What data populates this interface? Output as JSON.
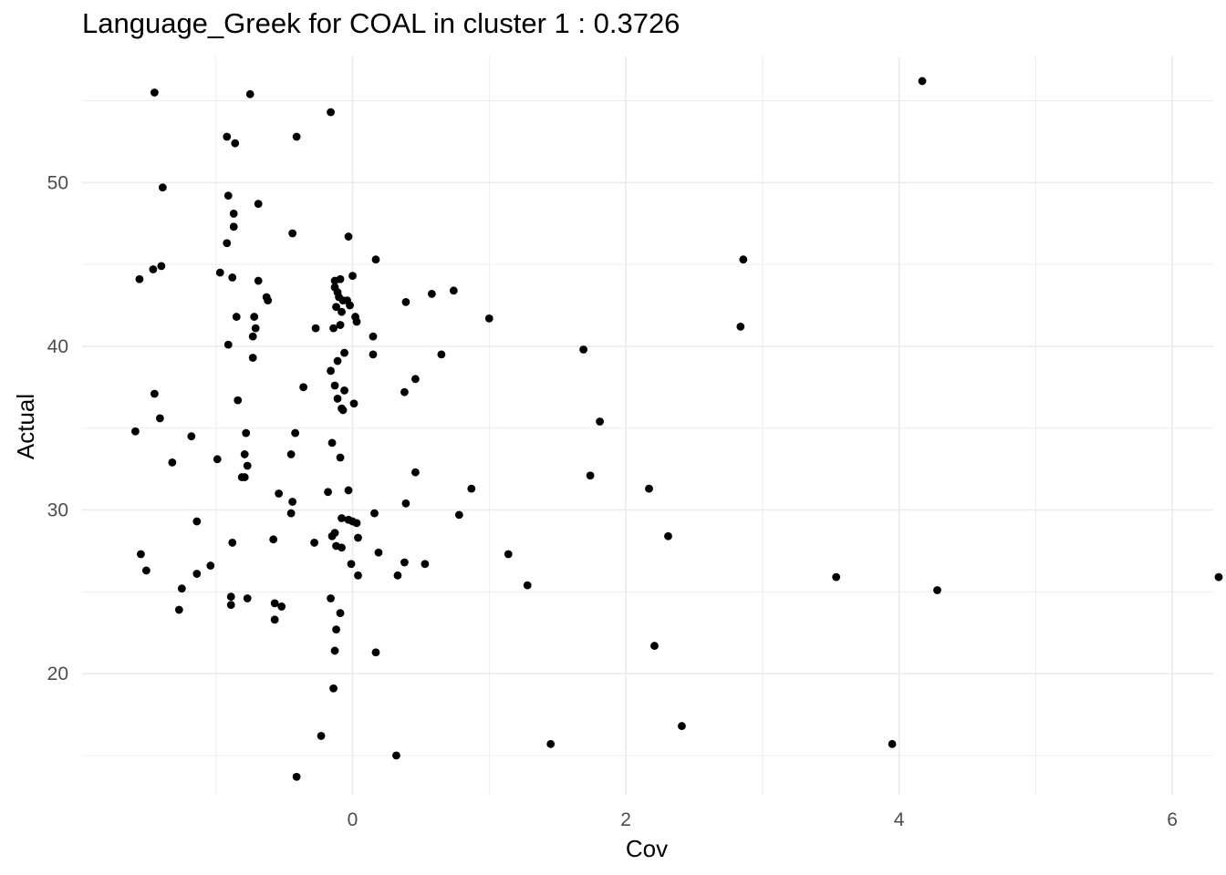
{
  "chart_data": {
    "type": "scatter",
    "title": "Language_Greek for COAL in cluster 1 : 0.3726",
    "xlabel": "Cov",
    "ylabel": "Actual",
    "xlim": [
      -1.98,
      6.3
    ],
    "ylim": [
      12.6,
      57.7
    ],
    "x_ticks": [
      0,
      2,
      4,
      6
    ],
    "x_tick_labels": [
      "0",
      "2",
      "4",
      "6"
    ],
    "y_ticks": [
      20,
      30,
      40,
      50
    ],
    "y_tick_labels": [
      "20",
      "30",
      "40",
      "50"
    ],
    "grid": true,
    "legend": "none",
    "point_color": "#000000",
    "points": [
      [
        -1.45,
        55.5
      ],
      [
        -0.75,
        55.4
      ],
      [
        4.17,
        56.2
      ],
      [
        -0.16,
        54.3
      ],
      [
        -0.92,
        52.8
      ],
      [
        -0.86,
        52.4
      ],
      [
        -0.41,
        52.8
      ],
      [
        -1.39,
        49.7
      ],
      [
        -0.91,
        49.2
      ],
      [
        -0.69,
        48.7
      ],
      [
        -0.87,
        48.1
      ],
      [
        -0.87,
        47.3
      ],
      [
        -0.44,
        46.9
      ],
      [
        -0.03,
        46.7
      ],
      [
        -0.92,
        46.3
      ],
      [
        0.17,
        45.3
      ],
      [
        2.86,
        45.3
      ],
      [
        -1.4,
        44.9
      ],
      [
        -1.46,
        44.7
      ],
      [
        -0.97,
        44.5
      ],
      [
        -1.56,
        44.1
      ],
      [
        -0.88,
        44.2
      ],
      [
        -0.69,
        44.0
      ],
      [
        0.0,
        44.3
      ],
      [
        -0.13,
        44.0
      ],
      [
        -0.09,
        44.1
      ],
      [
        -0.13,
        43.6
      ],
      [
        0.74,
        43.4
      ],
      [
        0.58,
        43.2
      ],
      [
        -0.11,
        43.3
      ],
      [
        -0.63,
        43.0
      ],
      [
        -0.62,
        42.8
      ],
      [
        -0.1,
        43.0
      ],
      [
        -0.07,
        42.8
      ],
      [
        -0.04,
        42.8
      ],
      [
        0.39,
        42.7
      ],
      [
        -0.12,
        42.4
      ],
      [
        -0.02,
        42.5
      ],
      [
        -0.08,
        42.1
      ],
      [
        -0.85,
        41.8
      ],
      [
        -0.72,
        41.8
      ],
      [
        0.02,
        41.8
      ],
      [
        1.0,
        41.7
      ],
      [
        0.03,
        41.5
      ],
      [
        2.84,
        41.2
      ],
      [
        -0.09,
        41.3
      ],
      [
        -0.27,
        41.1
      ],
      [
        -0.14,
        41.1
      ],
      [
        -0.71,
        41.1
      ],
      [
        -0.73,
        40.6
      ],
      [
        0.15,
        40.6
      ],
      [
        -0.91,
        40.1
      ],
      [
        1.69,
        39.8
      ],
      [
        -0.06,
        39.6
      ],
      [
        0.15,
        39.5
      ],
      [
        0.65,
        39.5
      ],
      [
        -0.73,
        39.3
      ],
      [
        -0.11,
        39.1
      ],
      [
        -0.16,
        38.5
      ],
      [
        0.46,
        38.0
      ],
      [
        -0.13,
        37.6
      ],
      [
        -0.36,
        37.5
      ],
      [
        -0.06,
        37.3
      ],
      [
        0.38,
        37.2
      ],
      [
        -1.45,
        37.1
      ],
      [
        -0.11,
        36.8
      ],
      [
        -0.84,
        36.7
      ],
      [
        0.01,
        36.5
      ],
      [
        -0.08,
        36.2
      ],
      [
        -0.07,
        36.1
      ],
      [
        -1.41,
        35.6
      ],
      [
        1.81,
        35.4
      ],
      [
        -1.59,
        34.8
      ],
      [
        -0.42,
        34.7
      ],
      [
        -0.78,
        34.7
      ],
      [
        -1.18,
        34.5
      ],
      [
        -0.15,
        34.1
      ],
      [
        -0.79,
        33.4
      ],
      [
        -0.45,
        33.4
      ],
      [
        -0.09,
        33.2
      ],
      [
        -0.99,
        33.1
      ],
      [
        -1.32,
        32.9
      ],
      [
        -0.77,
        32.7
      ],
      [
        0.46,
        32.3
      ],
      [
        1.74,
        32.1
      ],
      [
        -0.81,
        32.0
      ],
      [
        -0.79,
        32.0
      ],
      [
        2.17,
        31.3
      ],
      [
        0.87,
        31.3
      ],
      [
        -0.03,
        31.2
      ],
      [
        -0.18,
        31.1
      ],
      [
        -0.54,
        31.0
      ],
      [
        -0.44,
        30.5
      ],
      [
        0.39,
        30.4
      ],
      [
        0.16,
        29.8
      ],
      [
        -0.45,
        29.8
      ],
      [
        0.78,
        29.7
      ],
      [
        -0.08,
        29.5
      ],
      [
        -0.03,
        29.4
      ],
      [
        0.0,
        29.3
      ],
      [
        0.03,
        29.2
      ],
      [
        -1.14,
        29.3
      ],
      [
        2.31,
        28.4
      ],
      [
        -0.13,
        28.6
      ],
      [
        -0.15,
        28.4
      ],
      [
        0.04,
        28.3
      ],
      [
        -0.58,
        28.2
      ],
      [
        -0.88,
        28.0
      ],
      [
        -0.28,
        28.0
      ],
      [
        -0.12,
        27.8
      ],
      [
        -0.08,
        27.7
      ],
      [
        -1.55,
        27.3
      ],
      [
        0.19,
        27.4
      ],
      [
        1.14,
        27.3
      ],
      [
        -0.01,
        26.7
      ],
      [
        0.38,
        26.8
      ],
      [
        0.53,
        26.7
      ],
      [
        -1.04,
        26.6
      ],
      [
        -1.51,
        26.3
      ],
      [
        -1.14,
        26.1
      ],
      [
        0.04,
        26.0
      ],
      [
        0.33,
        26.0
      ],
      [
        3.54,
        25.9
      ],
      [
        6.34,
        25.9
      ],
      [
        1.28,
        25.4
      ],
      [
        -1.25,
        25.2
      ],
      [
        4.28,
        25.1
      ],
      [
        -0.89,
        24.7
      ],
      [
        -0.77,
        24.6
      ],
      [
        -0.16,
        24.6
      ],
      [
        -0.57,
        24.3
      ],
      [
        -0.52,
        24.1
      ],
      [
        -0.89,
        24.2
      ],
      [
        -1.27,
        23.9
      ],
      [
        -0.09,
        23.7
      ],
      [
        -0.57,
        23.3
      ],
      [
        -0.12,
        22.7
      ],
      [
        2.21,
        21.7
      ],
      [
        -0.13,
        21.4
      ],
      [
        0.17,
        21.3
      ],
      [
        -0.14,
        19.1
      ],
      [
        2.41,
        16.8
      ],
      [
        -0.23,
        16.2
      ],
      [
        1.45,
        15.7
      ],
      [
        3.95,
        15.7
      ],
      [
        0.32,
        15.0
      ],
      [
        -0.41,
        13.7
      ]
    ]
  }
}
